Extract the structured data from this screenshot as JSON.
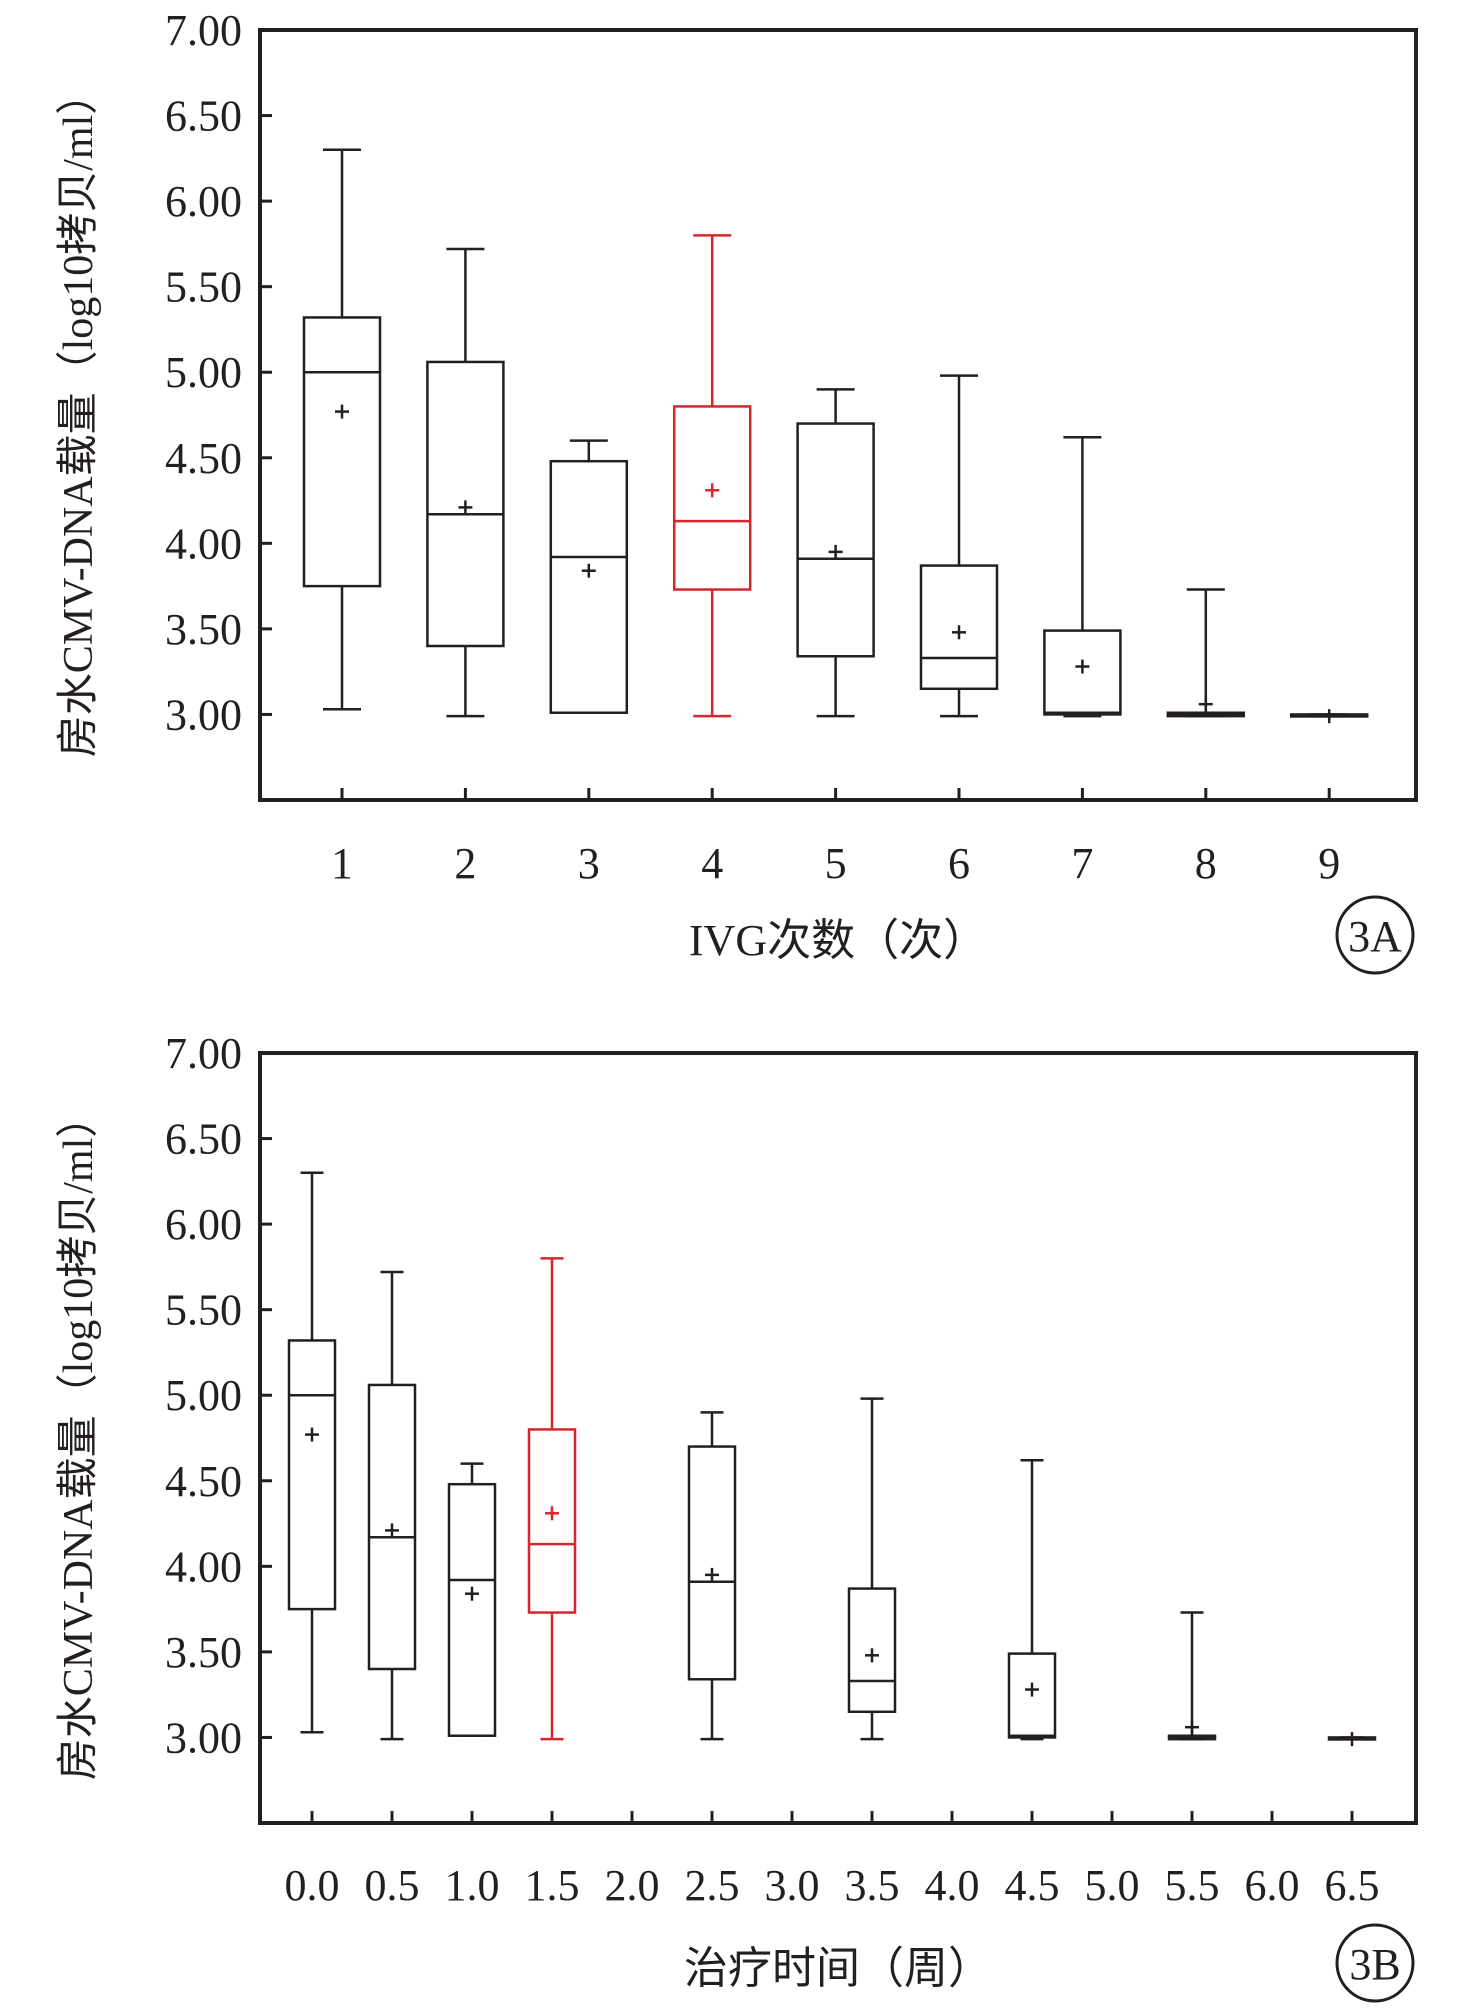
{
  "colors": {
    "ink": "#231f20",
    "highlight": "#d7262b"
  },
  "chart_data": [
    {
      "type": "boxplot",
      "panel_label": "3A",
      "xlabel": "IVG次数（次）",
      "ylabel": "房水CMV-DNA载量（log10拷贝/ml）",
      "ylim": [
        2.5,
        7.0
      ],
      "y_ticks": [
        "7.00",
        "6.50",
        "6.00",
        "5.50",
        "5.00",
        "4.50",
        "4.00",
        "3.50",
        "3.00"
      ],
      "x_ticks": [
        "1",
        "2",
        "3",
        "4",
        "5",
        "6",
        "7",
        "8",
        "9"
      ],
      "boxes": [
        {
          "x": 1,
          "min": 3.03,
          "q1": 3.75,
          "median": 5.0,
          "q3": 5.32,
          "max": 6.3,
          "mean": 4.77,
          "highlight": false
        },
        {
          "x": 2,
          "min": 2.99,
          "q1": 3.4,
          "median": 4.17,
          "q3": 5.06,
          "max": 5.72,
          "mean": 4.21,
          "highlight": false
        },
        {
          "x": 3,
          "min": 3.01,
          "q1": 3.01,
          "median": 3.92,
          "q3": 4.48,
          "max": 4.6,
          "mean": 3.84,
          "highlight": false
        },
        {
          "x": 4,
          "min": 2.99,
          "q1": 3.73,
          "median": 4.13,
          "q3": 4.8,
          "max": 5.8,
          "mean": 4.31,
          "highlight": true
        },
        {
          "x": 5,
          "min": 2.99,
          "q1": 3.34,
          "median": 3.91,
          "q3": 4.7,
          "max": 4.9,
          "mean": 3.95,
          "highlight": false
        },
        {
          "x": 6,
          "min": 2.99,
          "q1": 3.15,
          "median": 3.33,
          "q3": 3.87,
          "max": 4.98,
          "mean": 3.48,
          "highlight": false
        },
        {
          "x": 7,
          "min": 2.99,
          "q1": 3.0,
          "median": 3.01,
          "q3": 3.49,
          "max": 4.62,
          "mean": 3.28,
          "highlight": false
        },
        {
          "x": 8,
          "min": 2.99,
          "q1": 2.99,
          "median": 3.0,
          "q3": 3.01,
          "max": 3.73,
          "mean": 3.06,
          "highlight": false
        },
        {
          "x": 9,
          "min": 2.99,
          "q1": 2.99,
          "median": 2.99,
          "q3": 3.0,
          "max": 3.0,
          "mean": 2.99,
          "highlight": false
        }
      ]
    },
    {
      "type": "boxplot",
      "panel_label": "3B",
      "xlabel": "治疗时间（周）",
      "ylabel": "房水CMV-DNA载量（log10拷贝/ml）",
      "ylim": [
        2.5,
        7.0
      ],
      "y_ticks": [
        "7.00",
        "6.50",
        "6.00",
        "5.50",
        "5.00",
        "4.50",
        "4.00",
        "3.50",
        "3.00"
      ],
      "x_ticks": [
        "0.0",
        "0.5",
        "1.0",
        "1.5",
        "2.0",
        "2.5",
        "3.0",
        "3.5",
        "4.0",
        "4.5",
        "5.0",
        "5.5",
        "6.0",
        "6.5"
      ],
      "boxes": [
        {
          "x": 0.0,
          "min": 3.03,
          "q1": 3.75,
          "median": 5.0,
          "q3": 5.32,
          "max": 6.3,
          "mean": 4.77,
          "highlight": false
        },
        {
          "x": 0.5,
          "min": 2.99,
          "q1": 3.4,
          "median": 4.17,
          "q3": 5.06,
          "max": 5.72,
          "mean": 4.21,
          "highlight": false
        },
        {
          "x": 1.0,
          "min": 3.01,
          "q1": 3.01,
          "median": 3.92,
          "q3": 4.48,
          "max": 4.6,
          "mean": 3.84,
          "highlight": false
        },
        {
          "x": 1.5,
          "min": 2.99,
          "q1": 3.73,
          "median": 4.13,
          "q3": 4.8,
          "max": 5.8,
          "mean": 4.31,
          "highlight": true
        },
        {
          "x": 2.5,
          "min": 2.99,
          "q1": 3.34,
          "median": 3.91,
          "q3": 4.7,
          "max": 4.9,
          "mean": 3.95,
          "highlight": false
        },
        {
          "x": 3.5,
          "min": 2.99,
          "q1": 3.15,
          "median": 3.33,
          "q3": 3.87,
          "max": 4.98,
          "mean": 3.48,
          "highlight": false
        },
        {
          "x": 4.5,
          "min": 2.99,
          "q1": 3.0,
          "median": 3.01,
          "q3": 3.49,
          "max": 4.62,
          "mean": 3.28,
          "highlight": false
        },
        {
          "x": 5.5,
          "min": 2.99,
          "q1": 2.99,
          "median": 3.0,
          "q3": 3.01,
          "max": 3.73,
          "mean": 3.06,
          "highlight": false
        },
        {
          "x": 6.5,
          "min": 2.99,
          "q1": 2.99,
          "median": 2.99,
          "q3": 3.0,
          "max": 3.0,
          "mean": 2.99,
          "highlight": false
        }
      ]
    }
  ]
}
